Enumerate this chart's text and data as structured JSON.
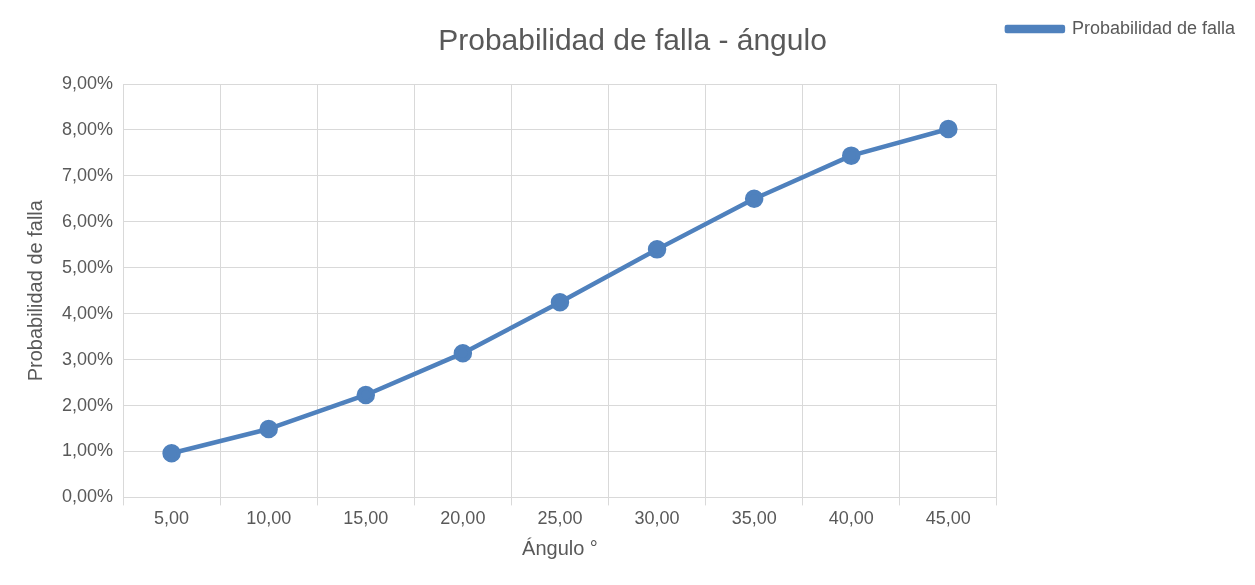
{
  "chart_data": {
    "type": "line",
    "title": "Probabilidad de falla - ángulo",
    "xlabel": "Ángulo °",
    "ylabel": "Probabilidad de falla",
    "categories": [
      "5,00",
      "10,00",
      "15,00",
      "20,00",
      "25,00",
      "30,00",
      "35,00",
      "40,00",
      "45,00"
    ],
    "series": [
      {
        "name": "Probabilidad de falla",
        "color": "#4f81bd",
        "values": [
          0.96,
          1.49,
          2.23,
          3.14,
          4.25,
          5.4,
          6.5,
          7.44,
          8.02
        ]
      }
    ],
    "ylim": [
      0,
      9
    ],
    "yticks": [
      {
        "value": 0,
        "label": "0,00%"
      },
      {
        "value": 1,
        "label": "1,00%"
      },
      {
        "value": 2,
        "label": "2,00%"
      },
      {
        "value": 3,
        "label": "3,00%"
      },
      {
        "value": 4,
        "label": "4,00%"
      },
      {
        "value": 5,
        "label": "5,00%"
      },
      {
        "value": 6,
        "label": "6,00%"
      },
      {
        "value": 7,
        "label": "7,00%"
      },
      {
        "value": 8,
        "label": "8,00%"
      },
      {
        "value": 9,
        "label": "9,00%"
      }
    ],
    "grid": true,
    "legend": "right",
    "marker": "circle",
    "line_style": "solid"
  }
}
